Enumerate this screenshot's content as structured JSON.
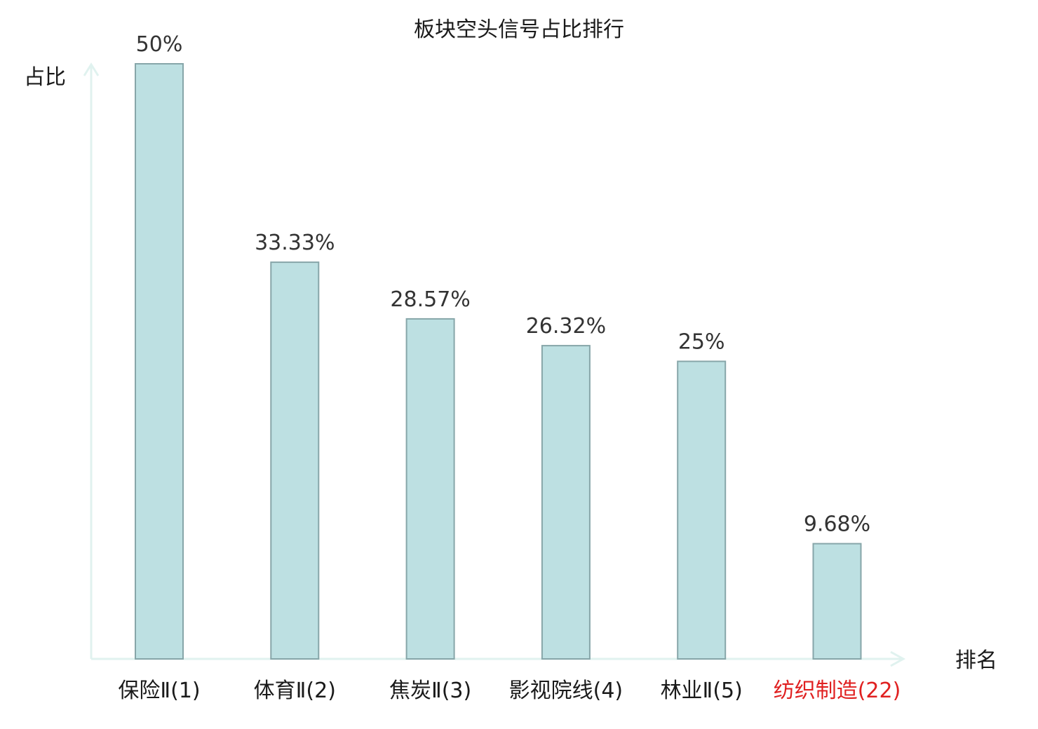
{
  "chart_data": {
    "type": "bar",
    "title": "板块空头信号占比排行",
    "xlabel": "排名",
    "ylabel": "占比",
    "categories": [
      "保险Ⅱ(1)",
      "体育Ⅱ(2)",
      "焦炭Ⅱ(3)",
      "影视院线(4)",
      "林业Ⅱ(5)",
      "纺织制造(22)"
    ],
    "values": [
      50,
      33.33,
      28.57,
      26.32,
      25,
      9.68
    ],
    "value_labels": [
      "50%",
      "33.33%",
      "28.57%",
      "26.32%",
      "25%",
      "9.68%"
    ],
    "highlight_index": 5,
    "ylim": [
      0,
      50
    ],
    "grid": false,
    "legend": "none",
    "colors": {
      "bar_fill": "#bde0e2",
      "bar_stroke": "#87a6a9",
      "axis": "#e0f2ef",
      "category_text": "#1a1a1a",
      "highlight_text": "#e02020",
      "value_text": "#333333"
    }
  }
}
